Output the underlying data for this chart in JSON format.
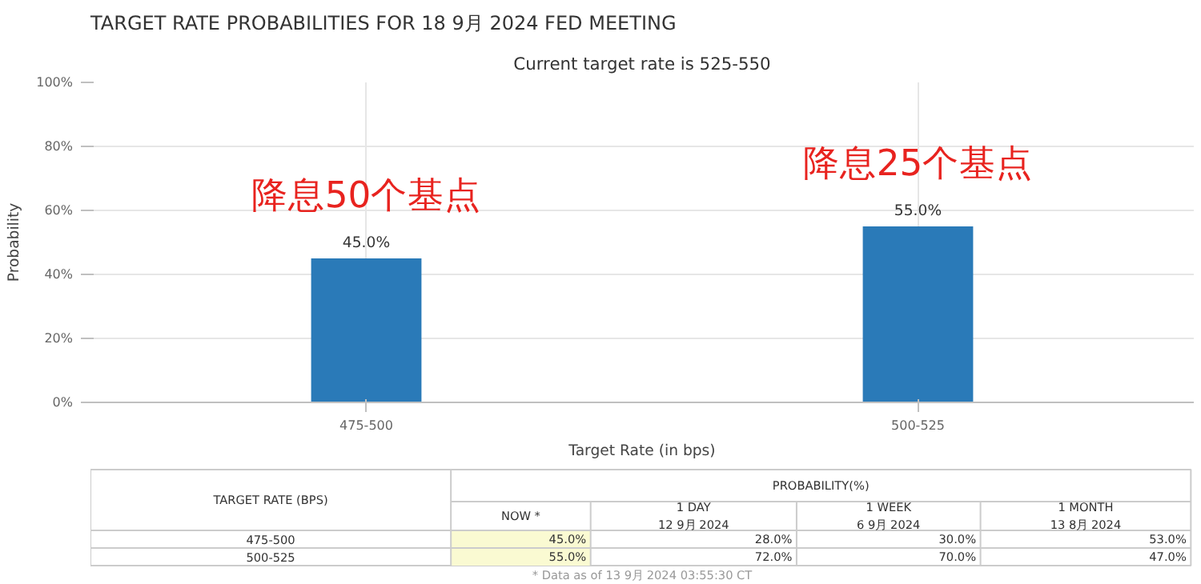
{
  "chart_data": {
    "type": "bar",
    "title": "TARGET RATE PROBABILITIES FOR 18 9月 2024 FED MEETING",
    "subtitle": "Current target rate is 525-550",
    "xlabel": "Target Rate (in bps)",
    "ylabel": "Probability",
    "categories": [
      "475-500",
      "500-525"
    ],
    "values": [
      45,
      55
    ],
    "color": "#2a7ab8",
    "value_labels": [
      "45.0%",
      "55.0%"
    ],
    "ylim": [
      0,
      100
    ],
    "yticks": [
      {
        "value": 0,
        "label": "0%"
      },
      {
        "value": 20,
        "label": "20%"
      },
      {
        "value": 40,
        "label": "40%"
      },
      {
        "value": 60,
        "label": "60%"
      },
      {
        "value": 80,
        "label": "80%"
      },
      {
        "value": 100,
        "label": "100%"
      }
    ],
    "grid": true,
    "annotations": [
      "降息50个基点",
      "降息25个基点",
      "TARGET RATE (BPS)",
      "PROBABILITY(%)",
      "NOW *",
      "1 DAY\n12 9月 2024",
      "1 WEEK\n6 9月 2024",
      "1 MONTH\n13 8月 2024",
      "475-500",
      "45.0%",
      "28.0%",
      "30.0%",
      "53.0%",
      "500-525",
      "55.0%",
      "72.0%",
      "70.0%",
      "47.0%",
      "* Data as of 13 9月 2024 03:55:30 CT"
    ]
  }
}
